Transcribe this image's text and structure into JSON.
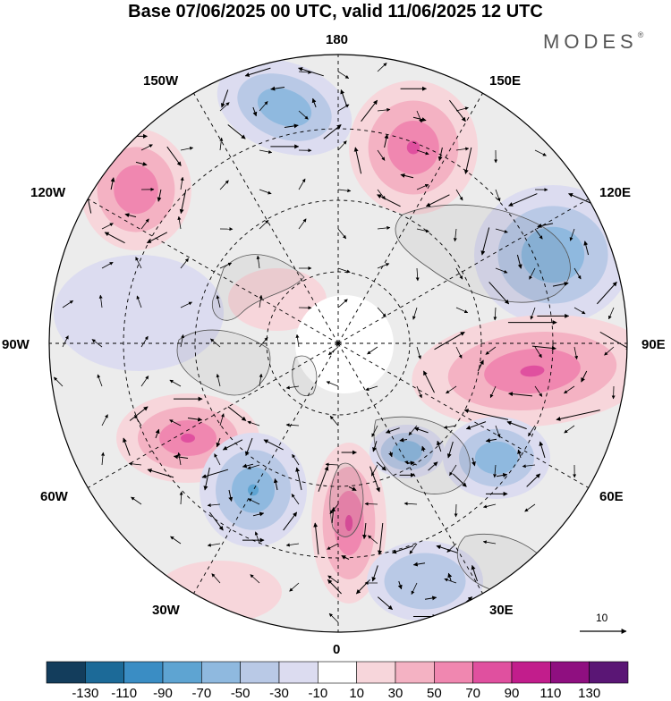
{
  "title": "Base 07/06/2025 00 UTC, valid 11/06/2025 12 UTC",
  "brand": "MODES",
  "brand_mark": "®",
  "longitude_labels": {
    "lon_180": "180",
    "lon_150e": "150E",
    "lon_120e": "120E",
    "lon_90e": "90E",
    "lon_60e": "60E",
    "lon_30e": "30E",
    "lon_0": "0",
    "lon_30w": "30W",
    "lon_60w": "60W",
    "lon_90w": "90W",
    "lon_120w": "120W",
    "lon_150w": "150W"
  },
  "reference_vector": "10",
  "colorbar": {
    "colors": [
      "#133d5c",
      "#1c6a98",
      "#3a8dc4",
      "#5ea4d2",
      "#8fb9df",
      "#b9c9e6",
      "#dcdcf0",
      "#ffffff",
      "#f7d6db",
      "#f4b2c3",
      "#f087b0",
      "#e0509f",
      "#c21d8c",
      "#8f0f80",
      "#5a1675"
    ],
    "ticks": [
      "-130",
      "-110",
      "-90",
      "-70",
      "-50",
      "-30",
      "-10",
      "10",
      "30",
      "50",
      "70",
      "90",
      "110",
      "130"
    ]
  },
  "map_style": {
    "projection": "north polar stereographic",
    "background_fill": "#ececec",
    "graticule": "dashed",
    "coastline_color": "#555555"
  }
}
